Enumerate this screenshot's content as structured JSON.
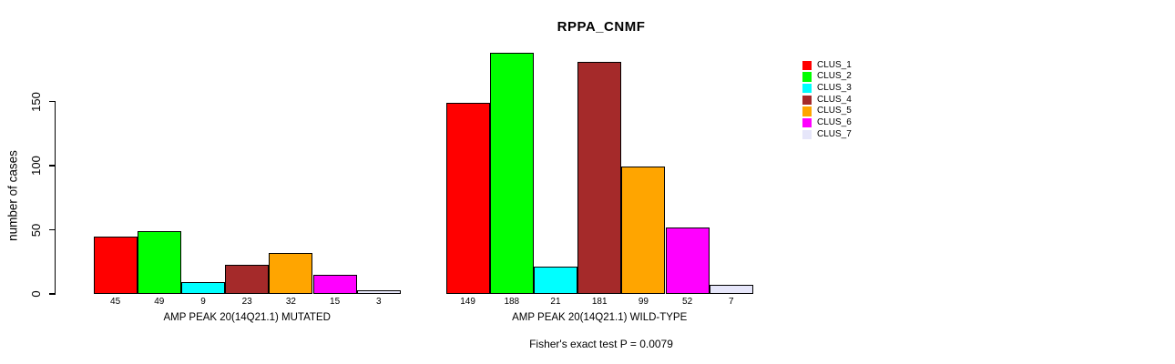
{
  "figure": {
    "title": "RPPA_CNMF",
    "y_axis_title": "number of cases",
    "annotation": "Fisher's exact test P = 0.0079"
  },
  "chart_data": {
    "type": "bar",
    "title": "RPPA_CNMF",
    "xlabel": "",
    "ylabel": "number of cases",
    "ylim": [
      0,
      150
    ],
    "yticks": [
      0,
      50,
      100,
      150
    ],
    "grid": false,
    "bar_border_color": "#000000",
    "background_color": "#ffffff",
    "legend": {
      "position": "right",
      "entries": [
        {
          "label": "CLUS_1",
          "color": "#ff0000"
        },
        {
          "label": "CLUS_2",
          "color": "#00ff00"
        },
        {
          "label": "CLUS_3",
          "color": "#00ffff"
        },
        {
          "label": "CLUS_4",
          "color": "#a52a2a"
        },
        {
          "label": "CLUS_5",
          "color": "#ffa500"
        },
        {
          "label": "CLUS_6",
          "color": "#ff00ff"
        },
        {
          "label": "CLUS_7",
          "color": "#e6e6fa"
        }
      ]
    },
    "categories": [
      "CLUS_1",
      "CLUS_2",
      "CLUS_3",
      "CLUS_4",
      "CLUS_5",
      "CLUS_6",
      "CLUS_7"
    ],
    "groups": [
      {
        "label": "AMP PEAK 20(14Q21.1) MUTATED",
        "values": [
          45,
          49,
          9,
          23,
          32,
          15,
          3
        ]
      },
      {
        "label": "AMP PEAK 20(14Q21.1) WILD-TYPE",
        "values": [
          149,
          188,
          21,
          181,
          99,
          52,
          7
        ]
      }
    ],
    "value_labels_under_bars": true,
    "annotation": "Fisher's exact test P = 0.0079"
  }
}
